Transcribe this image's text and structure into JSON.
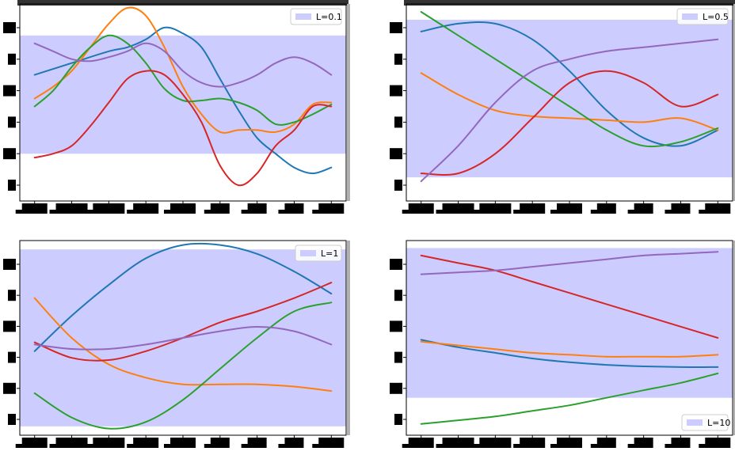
{
  "figure": {
    "band_color": "#ccccff",
    "line_colors": [
      "#1f77b4",
      "#ff7f0e",
      "#2ca02c",
      "#d62728",
      "#9467bd"
    ],
    "axis_dark_strip": "#333333"
  },
  "chart_data": [
    {
      "type": "line",
      "panel": "top-left",
      "legend": {
        "label": "L=0.1",
        "position": "top-right"
      },
      "x": [
        0,
        1,
        2,
        3,
        4,
        5,
        6,
        7,
        8
      ],
      "xlim": [
        -0.4,
        8.4
      ],
      "ylim": [
        -2.7,
        2.3
      ],
      "band": [
        -1.5,
        1.5
      ],
      "series": [
        {
          "color": "#1f77b4",
          "x": [
            0,
            1,
            2,
            2.5,
            3,
            3.5,
            4,
            4.5,
            5,
            5.5,
            6,
            6.5,
            7,
            7.5,
            8
          ],
          "y": [
            0.5,
            0.8,
            1.1,
            1.2,
            1.4,
            1.7,
            1.55,
            1.2,
            0.4,
            -0.4,
            -1.1,
            -1.5,
            -1.85,
            -2.0,
            -1.85
          ]
        },
        {
          "color": "#ff7f0e",
          "x": [
            0,
            0.5,
            1,
            1.5,
            2,
            2.5,
            3,
            3.5,
            4,
            4.5,
            5,
            5.5,
            6,
            6.5,
            7,
            7.5,
            8
          ],
          "y": [
            -0.1,
            0.2,
            0.6,
            1.2,
            1.8,
            2.2,
            2.0,
            1.2,
            0.2,
            -0.5,
            -0.95,
            -0.9,
            -0.9,
            -0.95,
            -0.75,
            -0.25,
            -0.2
          ]
        },
        {
          "color": "#2ca02c",
          "x": [
            0,
            0.5,
            1,
            1.5,
            2,
            2.5,
            3,
            3.5,
            4,
            4.5,
            5,
            5.5,
            6,
            6.5,
            7,
            7.5,
            8
          ],
          "y": [
            -0.3,
            0.1,
            0.7,
            1.2,
            1.5,
            1.3,
            0.8,
            0.15,
            -0.15,
            -0.15,
            -0.1,
            -0.2,
            -0.4,
            -0.75,
            -0.7,
            -0.5,
            -0.25
          ]
        },
        {
          "color": "#d62728",
          "x": [
            0,
            0.5,
            1,
            1.5,
            2,
            2.5,
            3,
            3.5,
            4,
            4.5,
            5,
            5.5,
            6,
            6.5,
            7,
            7.5,
            8
          ],
          "y": [
            -1.6,
            -1.5,
            -1.3,
            -0.8,
            -0.2,
            0.4,
            0.6,
            0.5,
            0.0,
            -0.7,
            -1.8,
            -2.3,
            -2.0,
            -1.3,
            -0.9,
            -0.3,
            -0.3
          ]
        },
        {
          "color": "#9467bd",
          "x": [
            0,
            0.5,
            1,
            1.5,
            2,
            2.5,
            3,
            3.5,
            4,
            4.5,
            5,
            5.5,
            6,
            6.5,
            7,
            7.5,
            8
          ],
          "y": [
            1.3,
            1.1,
            0.9,
            0.85,
            0.95,
            1.1,
            1.3,
            1.1,
            0.6,
            0.3,
            0.2,
            0.3,
            0.5,
            0.8,
            0.95,
            0.8,
            0.5
          ]
        }
      ]
    },
    {
      "type": "line",
      "panel": "top-right",
      "legend": {
        "label": "L=0.5",
        "position": "top-right"
      },
      "x": [
        0,
        1,
        2,
        3,
        4,
        5,
        6,
        7,
        8
      ],
      "xlim": [
        -0.4,
        8.4
      ],
      "ylim": [
        -2.7,
        2.3
      ],
      "band": [
        -2.1,
        1.9
      ],
      "series": [
        {
          "color": "#1f77b4",
          "x": [
            0,
            1,
            2,
            3,
            4,
            5,
            6,
            7,
            8
          ],
          "y": [
            1.6,
            1.8,
            1.8,
            1.4,
            0.6,
            -0.4,
            -1.1,
            -1.3,
            -0.9
          ]
        },
        {
          "color": "#ff7f0e",
          "x": [
            0,
            1,
            2,
            3,
            4,
            5,
            6,
            7,
            8
          ],
          "y": [
            0.55,
            0.0,
            -0.4,
            -0.55,
            -0.6,
            -0.65,
            -0.7,
            -0.6,
            -0.9
          ]
        },
        {
          "color": "#2ca02c",
          "x": [
            0,
            1,
            2,
            3,
            4,
            5,
            6,
            7,
            8
          ],
          "y": [
            2.1,
            1.5,
            0.9,
            0.3,
            -0.3,
            -0.9,
            -1.3,
            -1.2,
            -0.85
          ]
        },
        {
          "color": "#d62728",
          "x": [
            0,
            1,
            2,
            3,
            4,
            5,
            6,
            7,
            8
          ],
          "y": [
            -2.0,
            -2.0,
            -1.5,
            -0.6,
            0.3,
            0.6,
            0.3,
            -0.3,
            0.0
          ]
        },
        {
          "color": "#9467bd",
          "x": [
            0,
            1,
            2,
            3,
            4,
            5,
            6,
            7,
            8
          ],
          "y": [
            -2.2,
            -1.3,
            -0.2,
            0.6,
            0.9,
            1.1,
            1.2,
            1.3,
            1.4
          ]
        }
      ]
    },
    {
      "type": "line",
      "panel": "bottom-left",
      "legend": {
        "label": "L=1",
        "position": "top-right"
      },
      "x": [
        0,
        1,
        2,
        3,
        4,
        5,
        6,
        7,
        8
      ],
      "xlim": [
        -0.4,
        8.4
      ],
      "ylim": [
        -2.2,
        2.2
      ],
      "band": [
        -2.0,
        2.0
      ],
      "series": [
        {
          "color": "#1f77b4",
          "x": [
            0,
            1,
            2,
            3,
            4,
            5,
            6,
            7,
            8
          ],
          "y": [
            -0.3,
            0.5,
            1.2,
            1.8,
            2.1,
            2.1,
            1.9,
            1.5,
            1.0
          ]
        },
        {
          "color": "#ff7f0e",
          "x": [
            0,
            1,
            2,
            3,
            4,
            5,
            6,
            7,
            8
          ],
          "y": [
            0.9,
            0.0,
            -0.6,
            -0.9,
            -1.05,
            -1.05,
            -1.05,
            -1.1,
            -1.2
          ]
        },
        {
          "color": "#2ca02c",
          "x": [
            0,
            1,
            2,
            3,
            4,
            5,
            6,
            7,
            8
          ],
          "y": [
            -1.25,
            -1.8,
            -2.05,
            -1.9,
            -1.4,
            -0.7,
            0.0,
            0.6,
            0.8
          ]
        },
        {
          "color": "#d62728",
          "x": [
            0,
            1,
            2,
            3,
            4,
            5,
            6,
            7,
            8
          ],
          "y": [
            -0.1,
            -0.45,
            -0.5,
            -0.3,
            0.0,
            0.35,
            0.6,
            0.9,
            1.25
          ]
        },
        {
          "color": "#9467bd",
          "x": [
            0,
            1,
            2,
            3,
            4,
            5,
            6,
            7,
            8
          ],
          "y": [
            -0.15,
            -0.25,
            -0.25,
            -0.15,
            0.0,
            0.15,
            0.25,
            0.15,
            -0.15
          ]
        }
      ]
    },
    {
      "type": "line",
      "panel": "bottom-right",
      "legend": {
        "label": "L=10",
        "position": "bottom-right"
      },
      "x": [
        0,
        1,
        2,
        3,
        4,
        5,
        6,
        7,
        8
      ],
      "xlim": [
        -0.4,
        8.4
      ],
      "ylim": [
        -2.6,
        2.6
      ],
      "band": [
        -1.6,
        2.4
      ],
      "series": [
        {
          "color": "#1f77b4",
          "x": [
            0,
            1,
            2,
            3,
            4,
            5,
            6,
            7,
            8
          ],
          "y": [
            -0.05,
            -0.25,
            -0.4,
            -0.55,
            -0.65,
            -0.72,
            -0.76,
            -0.78,
            -0.78
          ]
        },
        {
          "color": "#ff7f0e",
          "x": [
            0,
            1,
            2,
            3,
            4,
            5,
            6,
            7,
            8
          ],
          "y": [
            -0.1,
            -0.2,
            -0.3,
            -0.4,
            -0.45,
            -0.5,
            -0.5,
            -0.5,
            -0.45
          ]
        },
        {
          "color": "#2ca02c",
          "x": [
            0,
            1,
            2,
            3,
            4,
            5,
            6,
            7,
            8
          ],
          "y": [
            -2.3,
            -2.2,
            -2.1,
            -1.95,
            -1.8,
            -1.6,
            -1.4,
            -1.2,
            -0.95
          ]
        },
        {
          "color": "#d62728",
          "x": [
            0,
            1,
            2,
            3,
            4,
            5,
            6,
            7,
            8
          ],
          "y": [
            2.2,
            2.0,
            1.8,
            1.5,
            1.2,
            0.9,
            0.6,
            0.3,
            0.0
          ]
        },
        {
          "color": "#9467bd",
          "x": [
            0,
            1,
            2,
            3,
            4,
            5,
            6,
            7,
            8
          ],
          "y": [
            1.7,
            1.75,
            1.8,
            1.9,
            2.0,
            2.1,
            2.2,
            2.25,
            2.3
          ]
        }
      ]
    }
  ]
}
